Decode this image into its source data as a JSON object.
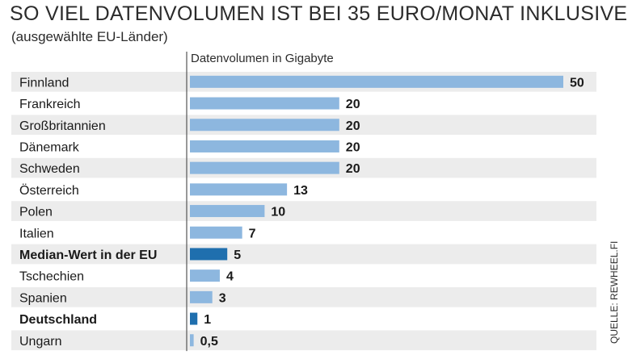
{
  "chart_data": {
    "type": "bar",
    "orientation": "horizontal",
    "title": "SO VIEL DATENVOLUMEN IST BEI 35 EURO/MONAT INKLUSIVE",
    "subtitle": "(ausgewählte EU-Länder)",
    "xlabel": "Datenvolumen in Gigabyte",
    "source": "QUELLE: REWHEEL.FI",
    "categories": [
      "Finnland",
      "Frankreich",
      "Großbritannien",
      "Dänemark",
      "Schweden",
      "Österreich",
      "Polen",
      "Italien",
      "Median-Wert in der EU",
      "Tschechien",
      "Spanien",
      "Deutschland",
      "Ungarn"
    ],
    "values": [
      50,
      20,
      20,
      20,
      20,
      13,
      10,
      7,
      5,
      4,
      3,
      1,
      0.5
    ],
    "value_labels": [
      "50",
      "20",
      "20",
      "20",
      "20",
      "13",
      "10",
      "7",
      "5",
      "4",
      "3",
      "1",
      "0,5"
    ],
    "highlighted": [
      "Median-Wert in der EU",
      "Deutschland"
    ],
    "xlim": [
      0,
      50
    ],
    "colors": {
      "bar": "#8db7df",
      "bar_highlight": "#1f6fae",
      "row_stripe": "#ececec",
      "axis": "#555555"
    }
  }
}
